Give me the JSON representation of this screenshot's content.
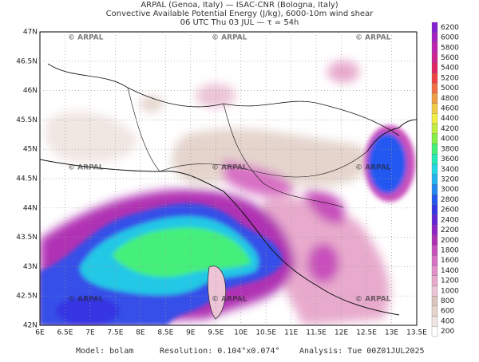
{
  "header": {
    "line1": "ARPAL (Genoa, Italy)  —  ISAC-CNR (Bologna, Italy)",
    "line2": "Convective Available Potential Energy (J/kg), 6000-10m wind shear",
    "line3": "06 UTC Thu 03 JUL  —  τ = 54h"
  },
  "axes": {
    "x_labels": [
      "6E",
      "6.5E",
      "7E",
      "7.5E",
      "8E",
      "8.5E",
      "9E",
      "9.5E",
      "10E",
      "10.5E",
      "11E",
      "11.5E",
      "12E",
      "12.5E",
      "13E",
      "13.5E"
    ],
    "y_labels": [
      "42N",
      "42.5N",
      "43N",
      "43.5N",
      "44N",
      "44.5N",
      "45N",
      "45.5N",
      "46N",
      "46.5N",
      "47N"
    ]
  },
  "watermark": "© ARPAL",
  "colorbar": {
    "labels": [
      "200",
      "400",
      "600",
      "800",
      "1000",
      "1200",
      "1400",
      "1600",
      "1800",
      "2000",
      "2200",
      "2400",
      "2600",
      "2800",
      "3000",
      "3200",
      "3400",
      "3600",
      "3800",
      "4000",
      "4200",
      "4400",
      "4600",
      "4800",
      "5000",
      "5200",
      "5400",
      "5600",
      "5800",
      "6000",
      "6200"
    ],
    "colors": [
      "#ffffff",
      "#f0e6e2",
      "#e4d4cc",
      "#dcc4bc",
      "#ecc4d6",
      "#e8aacc",
      "#e290ca",
      "#d870c4",
      "#c850bc",
      "#b030b4",
      "#9024c4",
      "#6426d4",
      "#3636e4",
      "#2458f0",
      "#2488f0",
      "#22b4ee",
      "#22d8e2",
      "#24eab4",
      "#44f07a",
      "#84f046",
      "#c2f042",
      "#f0ee44",
      "#f0cc44",
      "#f09e44",
      "#f07044",
      "#ee4444",
      "#e02464",
      "#d02290",
      "#c022b0",
      "#a422c2",
      "#8422d2"
    ]
  },
  "footer": {
    "model": "Model: bolam",
    "resolution": "Resolution: 0.104°x0.074°",
    "analysis": "Analysis: Tue 00Z01JUL2025"
  }
}
